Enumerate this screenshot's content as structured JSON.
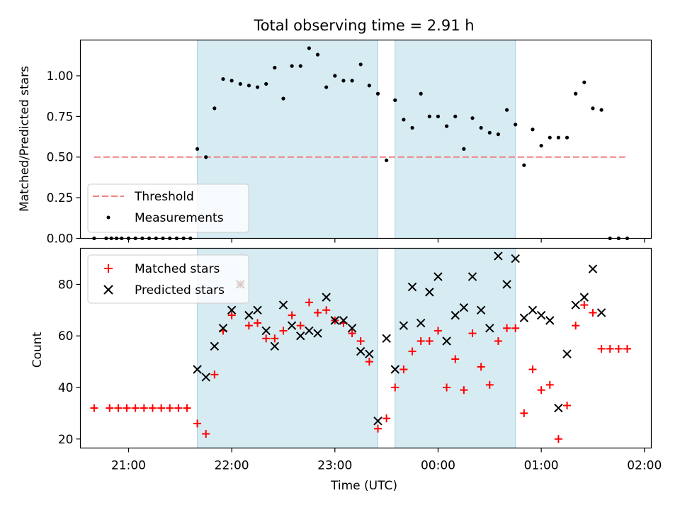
{
  "chart_data": [
    {
      "type": "scatter",
      "title": "Total observing time = 2.91 h",
      "ylabel": "Matched/Predicted stars",
      "xlim": [
        "20:32",
        "02:04"
      ],
      "ylim": [
        0,
        1.22
      ],
      "yticks": [
        "0.00",
        "0.25",
        "0.50",
        "0.75",
        "1.00"
      ],
      "grid": false,
      "legend_position": "lower-left",
      "shaded_intervals": [
        [
          "21:40",
          "23:25"
        ],
        [
          "23:35",
          "00:45"
        ]
      ],
      "threshold": {
        "name": "Threshold",
        "value": 0.5,
        "x_range": [
          "20:40",
          "01:50"
        ],
        "color": "#f08080"
      },
      "series": [
        {
          "name": "Measurements",
          "color": "#000000",
          "x": [
            "20:40",
            "20:47",
            "20:50",
            "20:53",
            "20:56",
            "21:00",
            "21:04",
            "21:08",
            "21:12",
            "21:16",
            "21:20",
            "21:24",
            "21:28",
            "21:32",
            "21:36",
            "21:40",
            "21:45",
            "21:50",
            "21:55",
            "22:00",
            "22:05",
            "22:10",
            "22:15",
            "22:20",
            "22:25",
            "22:30",
            "22:35",
            "22:40",
            "22:45",
            "22:50",
            "22:55",
            "23:00",
            "23:05",
            "23:10",
            "23:15",
            "23:20",
            "23:25",
            "23:30",
            "23:35",
            "23:40",
            "23:45",
            "23:50",
            "23:55",
            "24:00",
            "24:05",
            "24:10",
            "24:15",
            "24:20",
            "24:25",
            "24:30",
            "24:35",
            "24:40",
            "24:45",
            "24:50",
            "24:55",
            "25:00",
            "25:05",
            "25:10",
            "25:15",
            "25:20",
            "25:25",
            "25:30",
            "25:35",
            "25:40",
            "25:45",
            "25:50"
          ],
          "y": [
            0,
            0,
            0,
            0,
            0,
            0,
            0,
            0,
            0,
            0,
            0,
            0,
            0,
            0,
            0,
            0.55,
            0.5,
            0.8,
            0.98,
            0.97,
            0.95,
            0.94,
            0.93,
            0.95,
            1.05,
            0.86,
            1.06,
            1.06,
            1.17,
            1.13,
            0.93,
            1.0,
            0.97,
            0.97,
            1.07,
            0.94,
            0.89,
            0.48,
            0.85,
            0.73,
            0.68,
            0.89,
            0.75,
            0.75,
            0.69,
            0.75,
            0.55,
            0.74,
            0.68,
            0.65,
            0.64,
            0.79,
            0.7,
            0.45,
            0.67,
            0.57,
            0.62,
            0.62,
            0.62,
            0.89,
            0.96,
            0.8,
            0.79,
            0,
            0,
            0
          ]
        }
      ]
    },
    {
      "type": "scatter",
      "xlabel": "Time (UTC)",
      "ylabel": "Count",
      "xlim": [
        "20:32",
        "02:04"
      ],
      "ylim": [
        16.5,
        94
      ],
      "yticks": [
        "20",
        "40",
        "60",
        "80"
      ],
      "xticks": [
        "21:00",
        "22:00",
        "23:00",
        "00:00",
        "01:00",
        "02:00"
      ],
      "grid": false,
      "legend_position": "top-left",
      "shaded_intervals": [
        [
          "21:40",
          "23:25"
        ],
        [
          "23:35",
          "00:45"
        ]
      ],
      "series": [
        {
          "name": "Matched stars",
          "marker": "plus",
          "color": "#ff0000",
          "x": [
            "20:40",
            "20:49",
            "20:54",
            "20:59",
            "21:04",
            "21:09",
            "21:14",
            "21:19",
            "21:24",
            "21:29",
            "21:34",
            "21:40",
            "21:45",
            "21:50",
            "21:55",
            "22:00",
            "22:05",
            "22:10",
            "22:15",
            "22:20",
            "22:25",
            "22:30",
            "22:35",
            "22:40",
            "22:45",
            "22:50",
            "22:55",
            "23:00",
            "23:05",
            "23:10",
            "23:15",
            "23:20",
            "23:25",
            "23:30",
            "23:35",
            "23:40",
            "23:45",
            "23:50",
            "23:55",
            "24:00",
            "24:05",
            "24:10",
            "24:15",
            "24:20",
            "24:25",
            "24:30",
            "24:35",
            "24:40",
            "24:45",
            "24:50",
            "24:55",
            "25:00",
            "25:05",
            "25:10",
            "25:15",
            "25:20",
            "25:25",
            "25:30",
            "25:35",
            "25:40",
            "25:45",
            "25:50"
          ],
          "y": [
            32,
            32,
            32,
            32,
            32,
            32,
            32,
            32,
            32,
            32,
            32,
            26,
            22,
            45,
            62,
            68,
            80,
            64,
            65,
            59,
            59,
            62,
            68,
            64,
            73,
            69,
            70,
            66,
            65,
            61,
            58,
            50,
            24,
            28,
            40,
            47,
            54,
            58,
            58,
            62,
            40,
            51,
            39,
            61,
            48,
            41,
            58,
            63,
            63,
            30,
            47,
            39,
            41,
            20,
            33,
            64,
            72,
            69,
            55,
            55,
            55,
            55
          ]
        },
        {
          "name": "Predicted stars",
          "marker": "x",
          "color": "#000000",
          "x": [
            "21:40",
            "21:45",
            "21:50",
            "21:55",
            "22:00",
            "22:05",
            "22:10",
            "22:15",
            "22:20",
            "22:25",
            "22:30",
            "22:35",
            "22:40",
            "22:45",
            "22:50",
            "22:55",
            "23:00",
            "23:05",
            "23:10",
            "23:15",
            "23:20",
            "23:25",
            "23:30",
            "23:35",
            "23:40",
            "23:45",
            "23:50",
            "23:55",
            "24:00",
            "24:05",
            "24:10",
            "24:15",
            "24:20",
            "24:25",
            "24:30",
            "24:35",
            "24:40",
            "24:45",
            "24:50",
            "24:55",
            "25:00",
            "25:05",
            "25:10",
            "25:15",
            "25:20",
            "25:25",
            "25:30",
            "25:35"
          ],
          "y": [
            47,
            44,
            56,
            63,
            70,
            80,
            68,
            70,
            62,
            56,
            72,
            64,
            60,
            62,
            61,
            75,
            66,
            66,
            63,
            54,
            53,
            27,
            59,
            47,
            64,
            79,
            65,
            77,
            83,
            58,
            68,
            71,
            83,
            70,
            63,
            91,
            80,
            90,
            67,
            70,
            68,
            66,
            32,
            53,
            72,
            75,
            86,
            69
          ]
        }
      ]
    }
  ]
}
